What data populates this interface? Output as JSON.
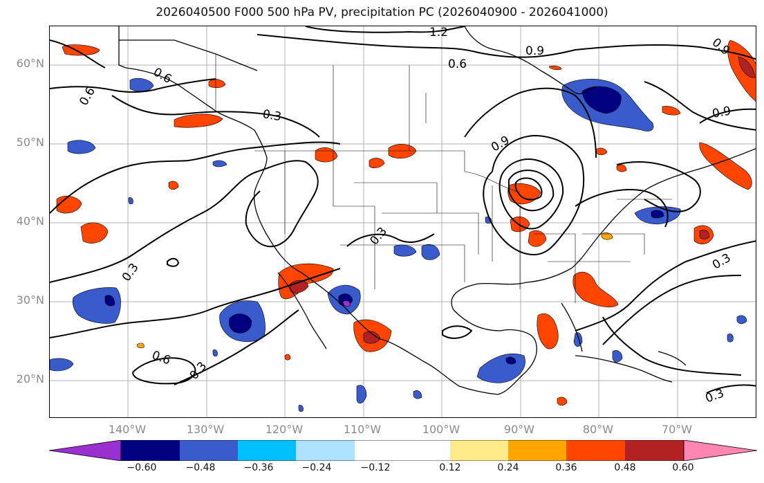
{
  "title": "2026040500 F000 500 hPa PV, precipitation PC (2026040900 - 2026041000)",
  "lat_labels": [
    "60°N",
    "50°N",
    "40°N",
    "30°N",
    "20°N"
  ],
  "lon_labels": [
    "140°W",
    "130°W",
    "120°W",
    "110°W",
    "100°W",
    "90°W",
    "80°W",
    "70°W"
  ],
  "contour_labels": [
    "1.2",
    "0.9",
    "0.6",
    "0.6",
    "0.6",
    "0.3",
    "0.9",
    "0.9",
    "0.3",
    "0.3",
    "0.3",
    "0.6",
    "0.3",
    "0.3",
    "0.9"
  ],
  "colorbar": {
    "colors": [
      "#9b30d0",
      "#000080",
      "#3a5bcc",
      "#00bfff",
      "#b0e0ff",
      "#ffffff",
      "#ffeb8a",
      "#ffa500",
      "#ff4500",
      "#b22222",
      "#ff85b3"
    ],
    "ticks": [
      "−0.60",
      "−0.48",
      "−0.36",
      "−0.24",
      "−0.12",
      "0.12",
      "0.24",
      "0.36",
      "0.48",
      "0.60"
    ]
  }
}
